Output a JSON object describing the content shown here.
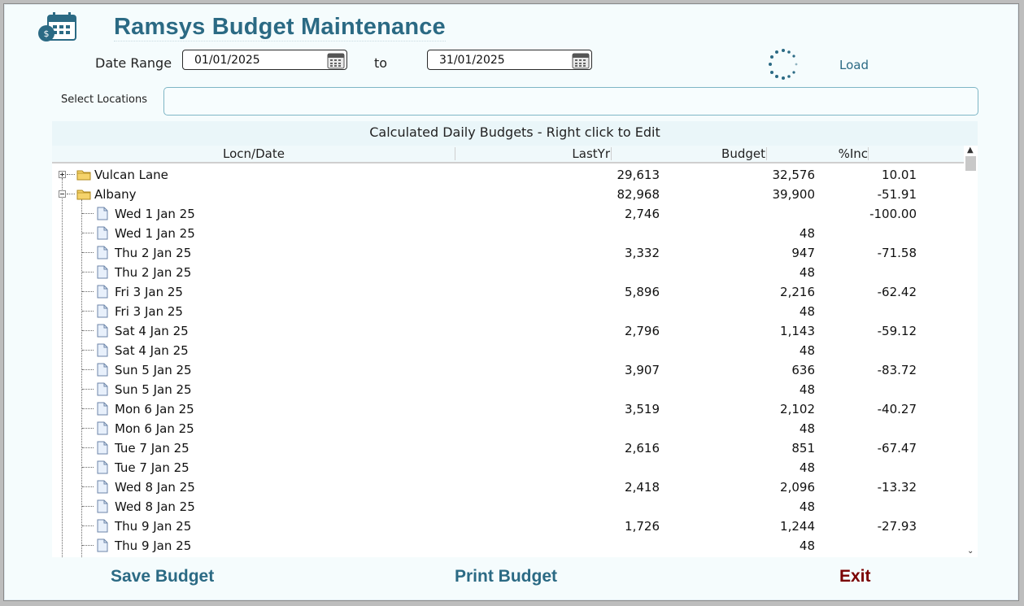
{
  "app": {
    "title": "Ramsys Budget Maintenance"
  },
  "filters": {
    "date_range_label": "Date Range",
    "from_date": "01/01/2025",
    "to_label": "to",
    "to_date": "31/01/2025",
    "load_label": "Load",
    "locations_label": "Select Locations",
    "locations_value": ""
  },
  "grid": {
    "caption": "Calculated Daily Budgets - Right click to Edit",
    "columns": [
      "Locn/Date",
      "LastYr",
      "Budget",
      "%Inc"
    ],
    "rows": [
      {
        "name": "Vulcan Lane",
        "lastyr": "29,613",
        "budget": "32,576",
        "inc": "10.01",
        "level": 0,
        "expanded": false
      },
      {
        "name": "Albany",
        "lastyr": "82,968",
        "budget": "39,900",
        "inc": "-51.91",
        "level": 0,
        "expanded": true
      },
      {
        "name": "Wed 1 Jan 25",
        "lastyr": "2,746",
        "budget": "",
        "inc": "-100.00",
        "level": 1
      },
      {
        "name": "Wed 1 Jan 25",
        "lastyr": "",
        "budget": "48",
        "inc": "",
        "level": 1
      },
      {
        "name": "Thu 2 Jan 25",
        "lastyr": "3,332",
        "budget": "947",
        "inc": "-71.58",
        "level": 1
      },
      {
        "name": "Thu 2 Jan 25",
        "lastyr": "",
        "budget": "48",
        "inc": "",
        "level": 1
      },
      {
        "name": "Fri 3 Jan 25",
        "lastyr": "5,896",
        "budget": "2,216",
        "inc": "-62.42",
        "level": 1
      },
      {
        "name": "Fri 3 Jan 25",
        "lastyr": "",
        "budget": "48",
        "inc": "",
        "level": 1
      },
      {
        "name": "Sat 4 Jan 25",
        "lastyr": "2,796",
        "budget": "1,143",
        "inc": "-59.12",
        "level": 1
      },
      {
        "name": "Sat 4 Jan 25",
        "lastyr": "",
        "budget": "48",
        "inc": "",
        "level": 1
      },
      {
        "name": "Sun 5 Jan 25",
        "lastyr": "3,907",
        "budget": "636",
        "inc": "-83.72",
        "level": 1
      },
      {
        "name": "Sun 5 Jan 25",
        "lastyr": "",
        "budget": "48",
        "inc": "",
        "level": 1
      },
      {
        "name": "Mon 6 Jan 25",
        "lastyr": "3,519",
        "budget": "2,102",
        "inc": "-40.27",
        "level": 1
      },
      {
        "name": "Mon 6 Jan 25",
        "lastyr": "",
        "budget": "48",
        "inc": "",
        "level": 1
      },
      {
        "name": "Tue 7 Jan 25",
        "lastyr": "2,616",
        "budget": "851",
        "inc": "-67.47",
        "level": 1
      },
      {
        "name": "Tue 7 Jan 25",
        "lastyr": "",
        "budget": "48",
        "inc": "",
        "level": 1
      },
      {
        "name": "Wed 8 Jan 25",
        "lastyr": "2,418",
        "budget": "2,096",
        "inc": "-13.32",
        "level": 1
      },
      {
        "name": "Wed 8 Jan 25",
        "lastyr": "",
        "budget": "48",
        "inc": "",
        "level": 1
      },
      {
        "name": "Thu 9 Jan 25",
        "lastyr": "1,726",
        "budget": "1,244",
        "inc": "-27.93",
        "level": 1
      },
      {
        "name": "Thu 9 Jan 25",
        "lastyr": "",
        "budget": "48",
        "inc": "",
        "level": 1
      }
    ]
  },
  "actions": {
    "save": "Save Budget",
    "print": "Print Budget",
    "exit": "Exit"
  },
  "colors": {
    "accent": "#2b6a84",
    "exit": "#7a0000",
    "border": "#7fb6c6"
  },
  "icons": {
    "app": "calendar-money-icon",
    "calendar": "calendar-icon",
    "spinner": "loading-spinner-icon",
    "folder": "folder-icon",
    "document": "document-icon"
  }
}
